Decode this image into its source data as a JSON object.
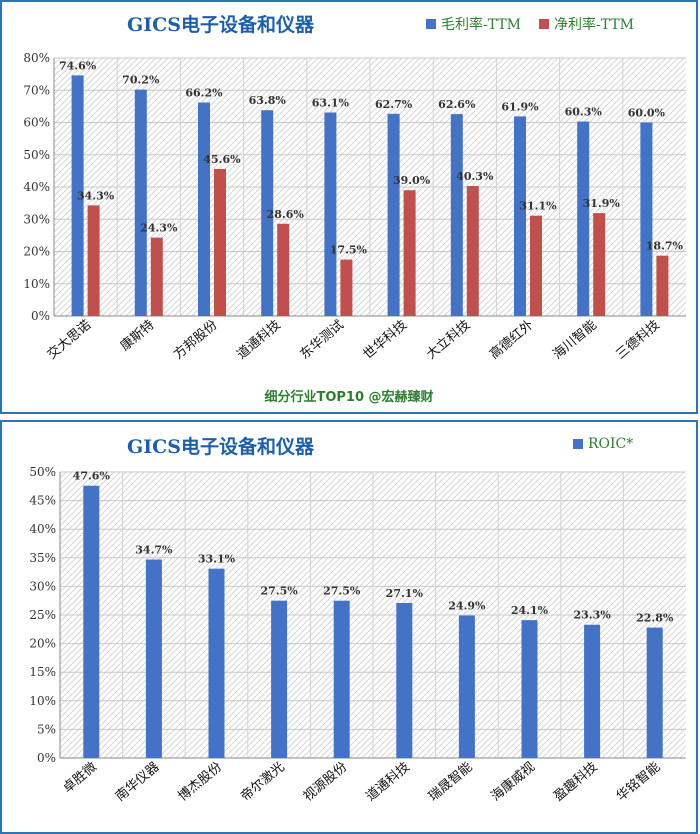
{
  "chart_data": [
    {
      "type": "bar",
      "title": "GICS电子设备和仪器",
      "categories": [
        "交大思诺",
        "康斯特",
        "方邦股份",
        "道通科技",
        "东华测试",
        "世华科技",
        "大立科技",
        "高德红外",
        "海川智能",
        "三德科技"
      ],
      "series": [
        {
          "name": "毛利率-TTM",
          "color": "#4472c4",
          "values": [
            74.6,
            70.2,
            66.2,
            63.8,
            63.1,
            62.7,
            62.6,
            61.9,
            60.3,
            60.0
          ]
        },
        {
          "name": "净利率-TTM",
          "color": "#c0504d",
          "values": [
            34.3,
            24.3,
            45.6,
            28.6,
            17.5,
            39.0,
            40.3,
            31.1,
            31.9,
            18.7
          ]
        }
      ],
      "ylim": [
        0,
        80
      ],
      "yticks": [
        "0%",
        "10%",
        "20%",
        "30%",
        "40%",
        "50%",
        "60%",
        "70%",
        "80%"
      ],
      "legend": "top-right",
      "grid": true
    },
    {
      "type": "bar",
      "title": "GICS电子设备和仪器",
      "categories": [
        "卓胜微",
        "南华仪器",
        "博杰股份",
        "帝尔激光",
        "视源股份",
        "道通科技",
        "瑞晟智能",
        "海康威视",
        "盈趣科技",
        "华铭智能"
      ],
      "series": [
        {
          "name": "ROIC*",
          "color": "#4472c4",
          "values": [
            47.6,
            34.7,
            33.1,
            27.5,
            27.5,
            27.1,
            24.9,
            24.1,
            23.3,
            22.8
          ]
        }
      ],
      "ylim": [
        0,
        50
      ],
      "yticks": [
        "0%",
        "5%",
        "10%",
        "15%",
        "20%",
        "25%",
        "30%",
        "35%",
        "40%",
        "45%",
        "50%"
      ],
      "legend": "top-right",
      "grid": true
    }
  ],
  "footer": "细分行业TOP10 @宏赫臻财"
}
